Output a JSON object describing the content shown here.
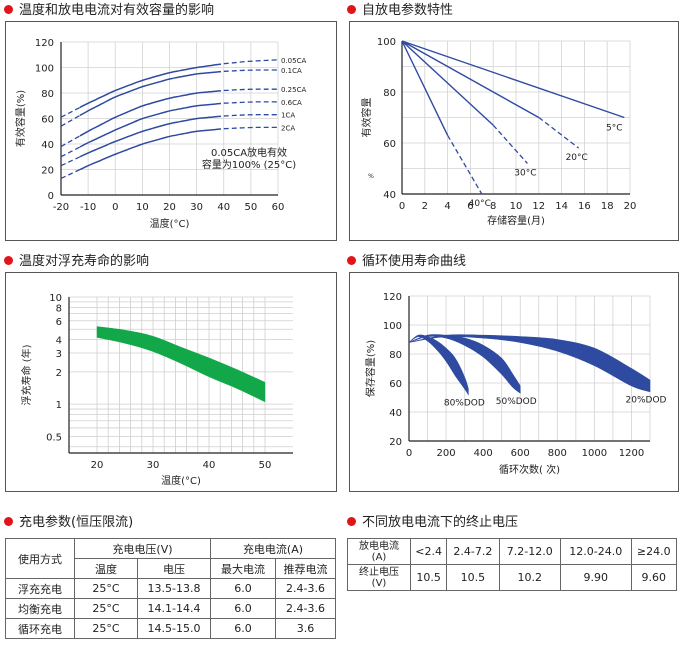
{
  "titles": {
    "c1": "温度和放电电流对有效容量的影响",
    "c2": "自放电参数特性",
    "c3": "温度对浮充寿命的影响",
    "c4": "循环使用寿命曲线",
    "t1": "充电参数(恒压限流)",
    "t2": "不同放电电流下的终止电压"
  },
  "colors": {
    "bullet": "#e1141b",
    "curve": "#2e4aa1",
    "band": "#12a84a"
  },
  "chart_data": [
    {
      "type": "line",
      "title": "温度和放电电流对有效容量的影响",
      "xlabel": "温度(°C)",
      "ylabel": "有效容量(%)",
      "xlim": [
        -20,
        60
      ],
      "ylim": [
        0,
        120
      ],
      "x_ticks": [
        "-20",
        "-10",
        "0",
        "10",
        "20",
        "30",
        "40",
        "50",
        "60"
      ],
      "y_ticks": [
        "0",
        "20",
        "40",
        "60",
        "80",
        "100",
        "120"
      ],
      "annotation_lines": [
        "0.05CA放电有效",
        "容量为100% (25°C)"
      ],
      "series": [
        {
          "name": "0.05CA",
          "x": [
            -20,
            -10,
            0,
            10,
            20,
            30,
            40,
            50,
            60
          ],
          "y": [
            61,
            72,
            82,
            90,
            96,
            100,
            103,
            105,
            106
          ]
        },
        {
          "name": "0.1CA",
          "x": [
            -20,
            -10,
            0,
            10,
            20,
            30,
            40,
            50,
            60
          ],
          "y": [
            54,
            66,
            77,
            85,
            91,
            95,
            97,
            98,
            98
          ]
        },
        {
          "name": "0.25CA",
          "x": [
            -20,
            -10,
            0,
            10,
            20,
            30,
            40,
            50,
            60
          ],
          "y": [
            38,
            50,
            61,
            70,
            76,
            80,
            82,
            83,
            83
          ]
        },
        {
          "name": "0.6CA",
          "x": [
            -20,
            -10,
            0,
            10,
            20,
            30,
            40,
            50,
            60
          ],
          "y": [
            30,
            41,
            51,
            60,
            66,
            70,
            72,
            73,
            73
          ]
        },
        {
          "name": "1CA",
          "x": [
            -20,
            -10,
            0,
            10,
            20,
            30,
            40,
            50,
            60
          ],
          "y": [
            23,
            33,
            42,
            50,
            56,
            60,
            62,
            63,
            63
          ]
        },
        {
          "name": "2CA",
          "x": [
            -20,
            -10,
            0,
            10,
            20,
            30,
            40,
            50,
            60
          ],
          "y": [
            13,
            23,
            32,
            40,
            46,
            50,
            52,
            53,
            53
          ]
        }
      ]
    },
    {
      "type": "line",
      "title": "自放电参数特性",
      "xlabel": "存储容量(月)",
      "ylabel": "有效容量",
      "y_unit": "%",
      "xlim": [
        0,
        20
      ],
      "ylim": [
        40,
        100
      ],
      "x_ticks": [
        "0",
        "2",
        "4",
        "6",
        "8",
        "10",
        "12",
        "14",
        "16",
        "18",
        "20"
      ],
      "y_ticks": [
        "40",
        "60",
        "80",
        "100"
      ],
      "series": [
        {
          "name": "40°C",
          "x": [
            0,
            4,
            7
          ],
          "y": [
            100,
            63,
            40
          ],
          "solid_until": 4
        },
        {
          "name": "30°C",
          "x": [
            0,
            8,
            11
          ],
          "y": [
            100,
            67,
            52
          ],
          "solid_until": 8
        },
        {
          "name": "20°C",
          "x": [
            0,
            12,
            15.5
          ],
          "y": [
            100,
            70,
            58
          ],
          "solid_until": 12
        },
        {
          "name": "5°C",
          "x": [
            0,
            19.5
          ],
          "y": [
            100,
            70
          ],
          "solid_until": 19.5
        }
      ]
    },
    {
      "type": "area",
      "title": "温度对浮充寿命的影响",
      "xlabel": "温度(°C)",
      "ylabel": "浮充寿命 (年)",
      "xlim": [
        15,
        55
      ],
      "ylim": [
        0.35,
        10
      ],
      "y_scale": "log",
      "x_ticks": [
        "20",
        "30",
        "40",
        "50"
      ],
      "y_ticks": [
        {
          "v": 0.5,
          "label": "0.5"
        },
        {
          "v": 1,
          "label": "1"
        },
        {
          "v": 2,
          "label": "2"
        },
        {
          "v": 3,
          "label": "3"
        },
        {
          "v": 4,
          "label": "4"
        },
        {
          "v": 6,
          "label": "6"
        },
        {
          "v": 8,
          "label": "8"
        },
        {
          "v": 10,
          "label": "10"
        }
      ],
      "band": {
        "x": [
          20,
          25,
          30,
          35,
          40,
          45,
          50
        ],
        "upper": [
          5.3,
          4.9,
          4.3,
          3.4,
          2.7,
          2.1,
          1.6
        ],
        "lower": [
          4.2,
          3.7,
          3.1,
          2.4,
          1.8,
          1.4,
          1.05
        ]
      }
    },
    {
      "type": "area",
      "title": "循环寿命曲线",
      "xlabel": "循环次数( 次)",
      "ylabel": "保存容量(%)",
      "xlim": [
        0,
        1300
      ],
      "ylim": [
        20,
        120
      ],
      "x_ticks": [
        "0",
        "200",
        "400",
        "600",
        "800",
        "1000",
        "1200"
      ],
      "y_ticks": [
        "20",
        "40",
        "60",
        "80",
        "100",
        "120"
      ],
      "series": [
        {
          "name": "80%DOD",
          "x": [
            0,
            50,
            100,
            150,
            200,
            250,
            300,
            320
          ],
          "upper": [
            88,
            93,
            92,
            89,
            84,
            77,
            64,
            56
          ],
          "lower": [
            88,
            92,
            89,
            83,
            75,
            65,
            56,
            52
          ]
        },
        {
          "name": "50%DOD",
          "x": [
            0,
            100,
            200,
            300,
            400,
            500,
            560,
            600
          ],
          "upper": [
            88,
            93,
            93,
            91,
            86,
            77,
            66,
            58
          ],
          "lower": [
            88,
            92,
            91,
            86,
            78,
            66,
            57,
            53
          ]
        },
        {
          "name": "20%DOD",
          "x": [
            0,
            200,
            400,
            600,
            800,
            1000,
            1200,
            1300
          ],
          "upper": [
            88,
            93,
            93,
            92,
            90,
            84,
            70,
            62
          ],
          "lower": [
            88,
            92,
            91,
            88,
            82,
            72,
            58,
            54
          ]
        }
      ]
    }
  ],
  "charge_table": {
    "h_mode": "使用方式",
    "h_voltage": "充电电压(V)",
    "h_current": "充电电流(A)",
    "h_temp": "温度",
    "h_volt": "电压",
    "h_max": "最大电流",
    "h_rec": "推荐电流",
    "rows": [
      {
        "mode": "浮充充电",
        "temp": "25°C",
        "voltage": "13.5-13.8",
        "max": "6.0",
        "rec": "2.4-3.6"
      },
      {
        "mode": "均衡充电",
        "temp": "25°C",
        "voltage": "14.1-14.4",
        "max": "6.0",
        "rec": "2.4-3.6"
      },
      {
        "mode": "循环充电",
        "temp": "25°C",
        "voltage": "14.5-15.0",
        "max": "6.0",
        "rec": "3.6"
      }
    ]
  },
  "cutoff_table": {
    "h1a": "放电电流",
    "h1b": "(A)",
    "h2a": "终止电压",
    "h2b": "(V)",
    "currents": [
      "<2.4",
      "2.4-7.2",
      "7.2-12.0",
      "12.0-24.0",
      "≥24.0"
    ],
    "voltages": [
      "10.5",
      "10.5",
      "10.2",
      "9.90",
      "9.60"
    ]
  }
}
